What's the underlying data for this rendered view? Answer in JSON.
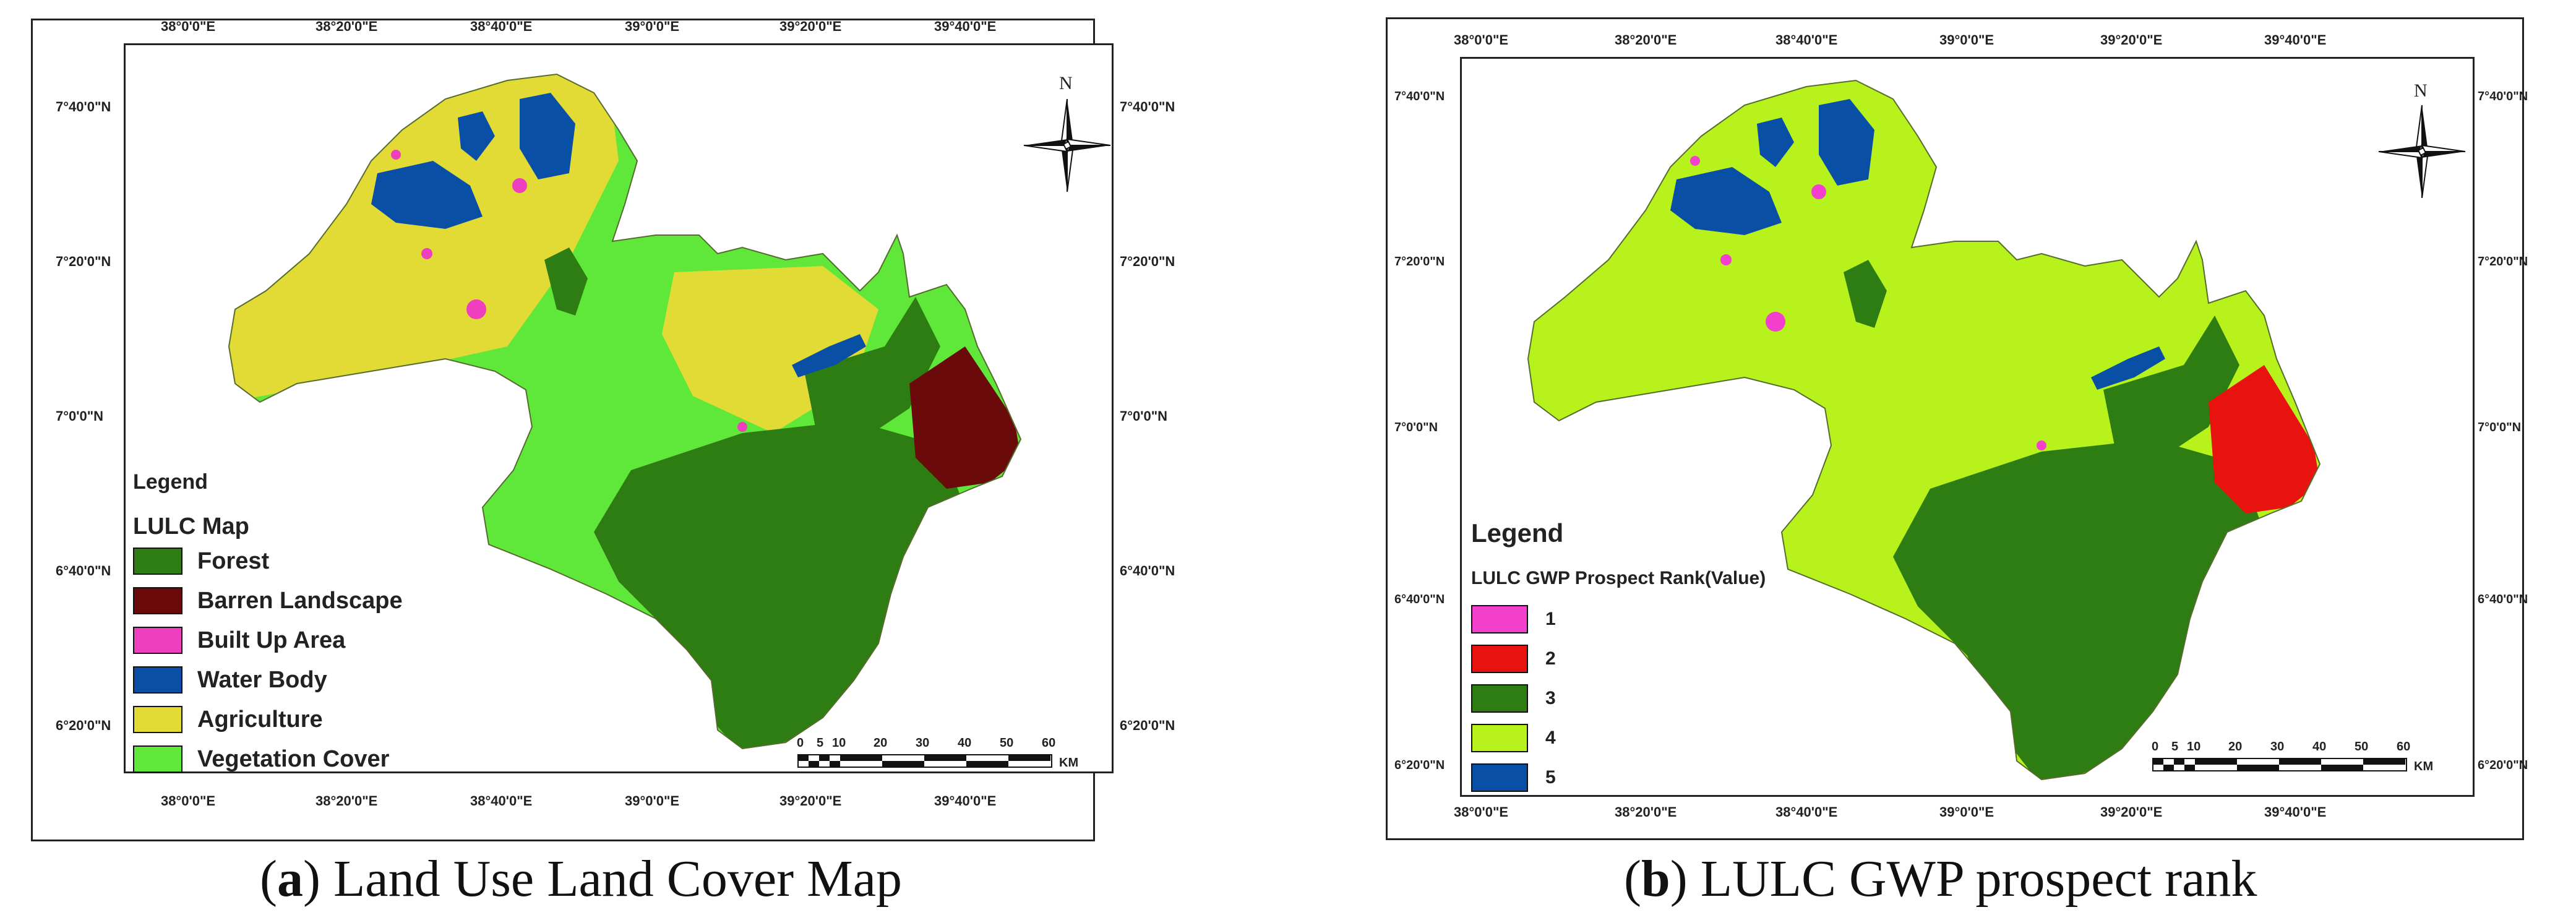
{
  "left_panel": {
    "caption_letter": "a",
    "caption_rest": " Land Use Land Cover Map",
    "top_ticks": [
      "38°0'0\"E",
      "38°20'0\"E",
      "38°40'0\"E",
      "39°0'0\"E",
      "39°20'0\"E",
      "39°40'0\"E"
    ],
    "bottom_ticks": [
      "38°0'0\"E",
      "38°20'0\"E",
      "38°40'0\"E",
      "39°0'0\"E",
      "39°20'0\"E",
      "39°40'0\"E"
    ],
    "left_ticks": [
      "7°40'0\"N",
      "7°20'0\"N",
      "7°0'0\"N",
      "6°40'0\"N",
      "6°20'0\"N"
    ],
    "right_ticks": [
      "7°40'0\"N",
      "7°20'0\"N",
      "7°0'0\"N",
      "6°40'0\"N",
      "6°20'0\"N"
    ],
    "north_label": "N",
    "legend": {
      "heading": "Legend",
      "title": "LULC Map",
      "items": [
        {
          "label": "Forest",
          "color": "#2e7d12"
        },
        {
          "label": "Barren Landscape",
          "color": "#6b0a0a"
        },
        {
          "label": "Built Up Area",
          "color": "#ee3fbf"
        },
        {
          "label": "Water Body",
          "color": "#0a4fa6"
        },
        {
          "label": "Agriculture",
          "color": "#e3db35"
        },
        {
          "label": "Vegetation Cover",
          "color": "#5fe83a"
        }
      ]
    },
    "scale": {
      "numbers": [
        "0",
        "5",
        "10",
        "20",
        "30",
        "40",
        "50",
        "60"
      ],
      "unit": "KM"
    }
  },
  "right_panel": {
    "caption_letter": "b",
    "caption_rest": " LULC GWP prospect rank",
    "top_ticks": [
      "38°0'0\"E",
      "38°20'0\"E",
      "38°40'0\"E",
      "39°0'0\"E",
      "39°20'0\"E",
      "39°40'0\"E"
    ],
    "bottom_ticks": [
      "38°0'0\"E",
      "38°20'0\"E",
      "38°40'0\"E",
      "39°0'0\"E",
      "39°20'0\"E",
      "39°40'0\"E"
    ],
    "left_ticks": [
      "7°40'0\"N",
      "7°20'0\"N",
      "7°0'0\"N",
      "6°40'0\"N",
      "6°20'0\"N"
    ],
    "right_ticks": [
      "7°40'0\"N",
      "7°20'0\"N",
      "7°0'0\"N",
      "6°40'0\"N",
      "6°20'0\"N"
    ],
    "north_label": "N",
    "legend": {
      "heading": "Legend",
      "title": "LULC GWP Prospect Rank(Value)",
      "items": [
        {
          "label": "1",
          "color": "#f23fcc"
        },
        {
          "label": "2",
          "color": "#e8120e"
        },
        {
          "label": "3",
          "color": "#2e7d12"
        },
        {
          "label": "4",
          "color": "#b8f21c"
        },
        {
          "label": "5",
          "color": "#0a4fa6"
        }
      ]
    },
    "scale": {
      "numbers": [
        "0",
        "5",
        "10",
        "20",
        "30",
        "40",
        "50",
        "60"
      ],
      "unit": "KM"
    }
  }
}
